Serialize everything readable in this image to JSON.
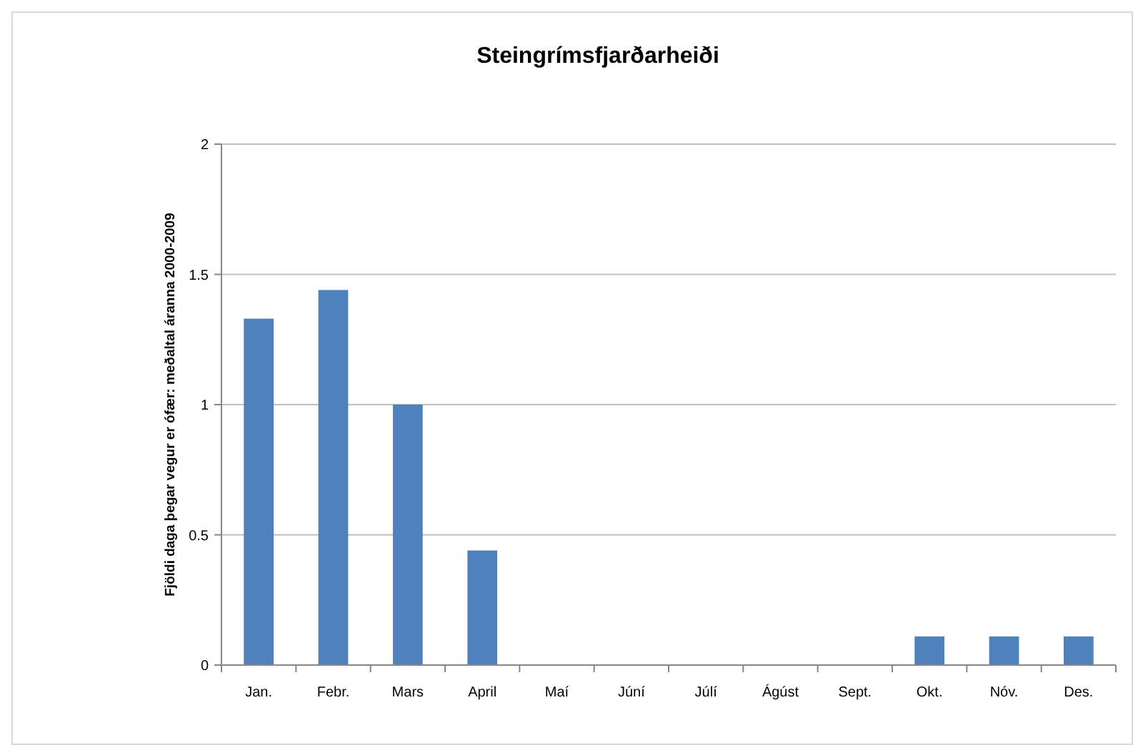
{
  "chart_data": {
    "type": "bar",
    "title": "Steingrímsfjarðarheiði",
    "ylabel": "Fjöldi daga þegar vegur er ófær: meðaltal áranna 2000-2009",
    "categories": [
      "Jan.",
      "Febr.",
      "Mars",
      "April",
      "Maí",
      "Júní",
      "Júlí",
      "Ágúst",
      "Sept.",
      "Okt.",
      "Nóv.",
      "Des."
    ],
    "values": [
      1.33,
      1.44,
      1,
      0.44,
      0,
      0,
      0,
      0,
      0,
      0.11,
      0.11,
      0.11
    ],
    "color": "#4f81bd",
    "ylim": [
      0,
      2
    ],
    "yticks": [
      0,
      0.5,
      1,
      1.5,
      2
    ],
    "grid": "y"
  }
}
